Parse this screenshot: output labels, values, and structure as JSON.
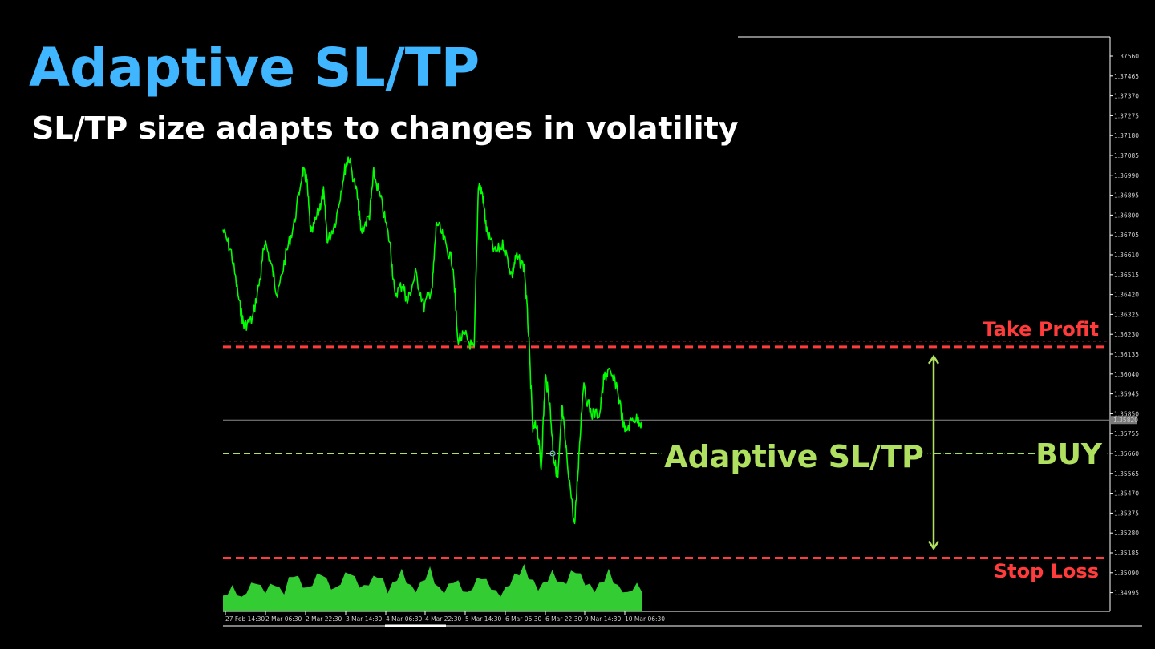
{
  "header": {
    "title": "Adaptive SL/TP",
    "subtitle": "SL/TP size adapts to changes in volatility"
  },
  "colors": {
    "title": "#3fb6ff",
    "price_line": "#00ff00",
    "volume_fill": "#33cc33",
    "take_profit": "#ff3b3b",
    "stop_loss": "#ff3b3b",
    "entry": "#b0e060",
    "axis": "#ffffff"
  },
  "annotations": {
    "take_profit_label": "Take Profit",
    "stop_loss_label": "Stop Loss",
    "adaptive_label": "Adaptive SL/TP",
    "buy_label": "BUY"
  },
  "chart_data": {
    "type": "line",
    "y_ticks": [
      "1.37560",
      "1.37465",
      "1.37370",
      "1.37275",
      "1.37180",
      "1.37085",
      "1.36990",
      "1.36895",
      "1.36800",
      "1.36705",
      "1.36610",
      "1.36515",
      "1.36420",
      "1.36325",
      "1.36230",
      "1.36135",
      "1.36040",
      "1.35945",
      "1.35850",
      "1.35755",
      "1.35660",
      "1.35565",
      "1.35470",
      "1.35375",
      "1.35280",
      "1.35185",
      "1.35090",
      "1.34995"
    ],
    "ylim": [
      1.3495,
      1.3766
    ],
    "current_price_label": "1.35820",
    "current_price": 1.3582,
    "x_ticks": [
      "27 Feb 14:30",
      "2 Mar 06:30",
      "2 Mar 22:30",
      "3 Mar 14:30",
      "4 Mar 06:30",
      "4 Mar 22:30",
      "5 Mar 14:30",
      "6 Mar 06:30",
      "6 Mar 22:30",
      "9 Mar 14:30",
      "10 Mar 06:30"
    ],
    "take_profit": 1.3617,
    "stop_loss": 1.3516,
    "entry": 1.3566,
    "price_series": [
      [
        0,
        1.3673
      ],
      [
        2,
        1.3662
      ],
      [
        4,
        1.3637
      ],
      [
        5,
        1.3627
      ],
      [
        7,
        1.363
      ],
      [
        9,
        1.3651
      ],
      [
        10,
        1.3668
      ],
      [
        12,
        1.3652
      ],
      [
        13,
        1.3641
      ],
      [
        15,
        1.3661
      ],
      [
        17,
        1.3676
      ],
      [
        19,
        1.3701
      ],
      [
        20,
        1.3697
      ],
      [
        21,
        1.367
      ],
      [
        23,
        1.3683
      ],
      [
        24,
        1.3691
      ],
      [
        25,
        1.3667
      ],
      [
        27,
        1.3678
      ],
      [
        29,
        1.3701
      ],
      [
        30,
        1.3708
      ],
      [
        32,
        1.369
      ],
      [
        33,
        1.3672
      ],
      [
        35,
        1.368
      ],
      [
        36,
        1.37
      ],
      [
        38,
        1.3685
      ],
      [
        40,
        1.3665
      ],
      [
        41,
        1.3642
      ],
      [
        43,
        1.3647
      ],
      [
        44,
        1.3638
      ],
      [
        46,
        1.3652
      ],
      [
        48,
        1.3636
      ],
      [
        50,
        1.3646
      ],
      [
        51,
        1.3677
      ],
      [
        53,
        1.3667
      ],
      [
        55,
        1.3656
      ],
      [
        56,
        1.3621
      ],
      [
        58,
        1.3622
      ],
      [
        60,
        1.3615
      ],
      [
        61,
        1.3695
      ],
      [
        62,
        1.369
      ],
      [
        63,
        1.3672
      ],
      [
        65,
        1.3662
      ],
      [
        67,
        1.3666
      ],
      [
        69,
        1.3651
      ],
      [
        70,
        1.366
      ],
      [
        72,
        1.3655
      ],
      [
        73,
        1.3623
      ],
      [
        74,
        1.3577
      ],
      [
        75,
        1.358
      ],
      [
        76,
        1.3559
      ],
      [
        77,
        1.3603
      ],
      [
        78,
        1.3591
      ],
      [
        79,
        1.3564
      ],
      [
        80,
        1.3554
      ],
      [
        81,
        1.3588
      ],
      [
        82,
        1.3567
      ],
      [
        84,
        1.3531
      ],
      [
        85,
        1.3565
      ],
      [
        86,
        1.3598
      ],
      [
        88,
        1.3585
      ],
      [
        90,
        1.3585
      ],
      [
        91,
        1.3602
      ],
      [
        92,
        1.3605
      ],
      [
        94,
        1.3599
      ],
      [
        96,
        1.3576
      ],
      [
        98,
        1.3583
      ],
      [
        100,
        1.3581
      ]
    ],
    "volume": [
      0.32,
      0.42,
      0.55,
      0.4,
      0.3,
      0.45,
      0.6,
      0.7,
      0.55,
      0.45,
      0.58,
      0.65,
      0.5,
      0.42,
      0.72,
      0.88,
      0.75,
      0.6,
      0.5,
      0.65,
      0.8,
      0.92,
      0.7,
      0.55,
      0.5,
      0.68,
      0.82,
      0.95,
      0.74,
      0.6,
      0.55,
      0.66,
      0.75,
      0.85,
      0.7,
      0.45,
      0.6,
      0.78,
      0.9,
      0.72,
      0.55,
      0.48,
      0.62,
      0.8,
      0.95,
      0.7,
      0.5,
      0.45,
      0.58,
      0.72,
      0.65,
      0.5,
      0.4,
      0.55,
      0.7,
      0.82,
      0.68,
      0.55,
      0.44,
      0.36,
      0.5,
      0.66,
      0.8,
      0.92,
      1.0,
      0.82,
      0.66,
      0.52,
      0.6,
      0.75,
      0.88,
      0.76,
      0.62,
      0.7,
      0.86,
      0.98,
      0.8,
      0.66,
      0.58,
      0.48,
      0.6,
      0.74,
      0.9,
      0.72,
      0.55,
      0.48,
      0.4,
      0.52,
      0.6,
      0.5
    ]
  }
}
